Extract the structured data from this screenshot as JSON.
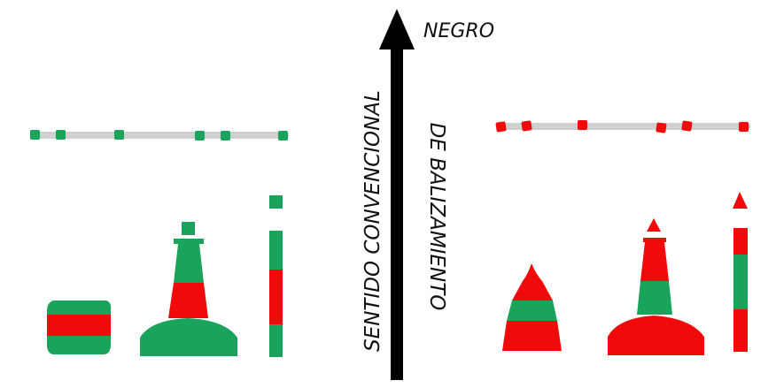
{
  "labels": {
    "top": "NEGRO",
    "vertical_line1": "SENTIDO CONVENCIONAL",
    "vertical_line2": "DE BALIZAMIENTO"
  },
  "colors": {
    "green": "#1aa35a",
    "red": "#f00a0a",
    "line": "#cfcfcf",
    "arrow": "#000000",
    "background": "#ffffff"
  },
  "icons": {
    "left_group": [
      "can-buoy-icon",
      "pillar-buoy-icon",
      "spar-buoy-icon"
    ],
    "right_group": [
      "conical-buoy-icon",
      "pillar-buoy-icon",
      "spar-buoy-icon"
    ]
  }
}
